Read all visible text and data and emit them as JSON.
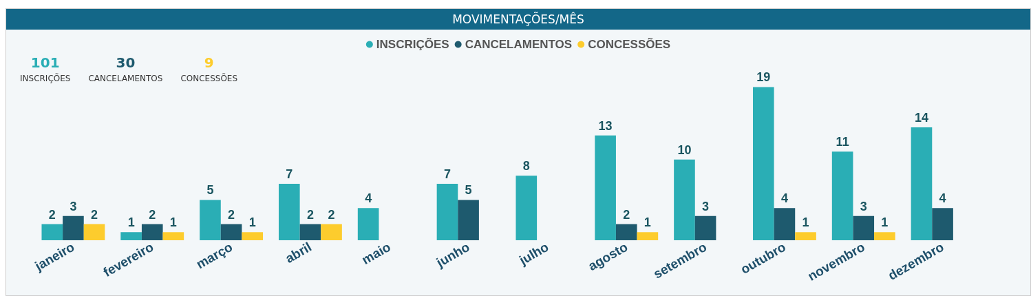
{
  "chart_data": {
    "type": "bar",
    "title": "MOVIMENTAÇÕES/MÊS",
    "categories": [
      "janeiro",
      "fevereiro",
      "março",
      "abril",
      "maio",
      "junho",
      "julho",
      "agosto",
      "setembro",
      "outubro",
      "novembro",
      "dezembro"
    ],
    "series": [
      {
        "name": "INSCRIÇÕES",
        "color": "#2aaeb5",
        "values": [
          2,
          1,
          5,
          7,
          4,
          7,
          8,
          13,
          10,
          19,
          11,
          14
        ]
      },
      {
        "name": "CANCELAMENTOS",
        "color": "#1e5a6e",
        "values": [
          3,
          2,
          2,
          2,
          null,
          5,
          null,
          2,
          3,
          4,
          3,
          4
        ]
      },
      {
        "name": "CONCESSÕES",
        "color": "#fdcc2d",
        "values": [
          2,
          1,
          1,
          2,
          null,
          null,
          null,
          1,
          null,
          1,
          1,
          null
        ]
      }
    ],
    "annotations": [
      "101",
      "INSCRIÇÕES",
      "30",
      "CANCELAMENTOS",
      "9",
      "CONCESSÕES"
    ],
    "data_labels": true,
    "legend": "top",
    "grid": false
  }
}
